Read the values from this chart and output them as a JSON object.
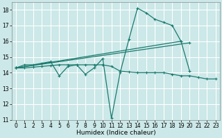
{
  "xlabel": "Humidex (Indice chaleur)",
  "background_color": "#cce8e8",
  "grid_color": "#ffffff",
  "line_color": "#1a7a6e",
  "xlim": [
    -0.5,
    23.5
  ],
  "ylim": [
    11,
    18.5
  ],
  "yticks": [
    11,
    12,
    13,
    14,
    15,
    16,
    17,
    18
  ],
  "xticks": [
    0,
    1,
    2,
    3,
    4,
    5,
    6,
    7,
    8,
    9,
    10,
    11,
    12,
    13,
    14,
    15,
    16,
    17,
    18,
    19,
    20,
    21,
    22,
    23
  ],
  "xtick_labels": [
    "0",
    "1",
    "2",
    "3",
    "4",
    "5",
    "6",
    "7",
    "8",
    "9",
    "10",
    "11",
    "12",
    "13",
    "14",
    "15",
    "16",
    "17",
    "18",
    "19",
    "20",
    "21",
    "22",
    "23"
  ],
  "series": [
    {
      "x": [
        0,
        1,
        2,
        3,
        4,
        5,
        6,
        7,
        8,
        9,
        10,
        11,
        12,
        13,
        14,
        15,
        16,
        17,
        18,
        19,
        20
      ],
      "y": [
        14.3,
        14.5,
        14.5,
        14.6,
        14.7,
        13.8,
        14.4,
        14.5,
        13.9,
        14.3,
        14.9,
        11.1,
        14.0,
        16.1,
        18.1,
        17.8,
        17.4,
        17.2,
        17.0,
        16.0,
        14.1
      ]
    },
    {
      "x": [
        0,
        19
      ],
      "y": [
        14.3,
        16.0
      ]
    },
    {
      "x": [
        0,
        20
      ],
      "y": [
        14.3,
        15.9
      ]
    },
    {
      "x": [
        0,
        1,
        2,
        3,
        4,
        5,
        6,
        7,
        8,
        9,
        10,
        11,
        12,
        13,
        14,
        15,
        16,
        17,
        18,
        19,
        20,
        21,
        22,
        23
      ],
      "y": [
        14.3,
        14.3,
        14.35,
        14.4,
        14.45,
        14.5,
        14.5,
        14.5,
        14.5,
        14.5,
        14.5,
        14.4,
        14.1,
        14.05,
        14.0,
        14.0,
        14.0,
        14.0,
        13.9,
        13.8,
        13.8,
        13.7,
        13.6,
        13.6
      ]
    }
  ]
}
